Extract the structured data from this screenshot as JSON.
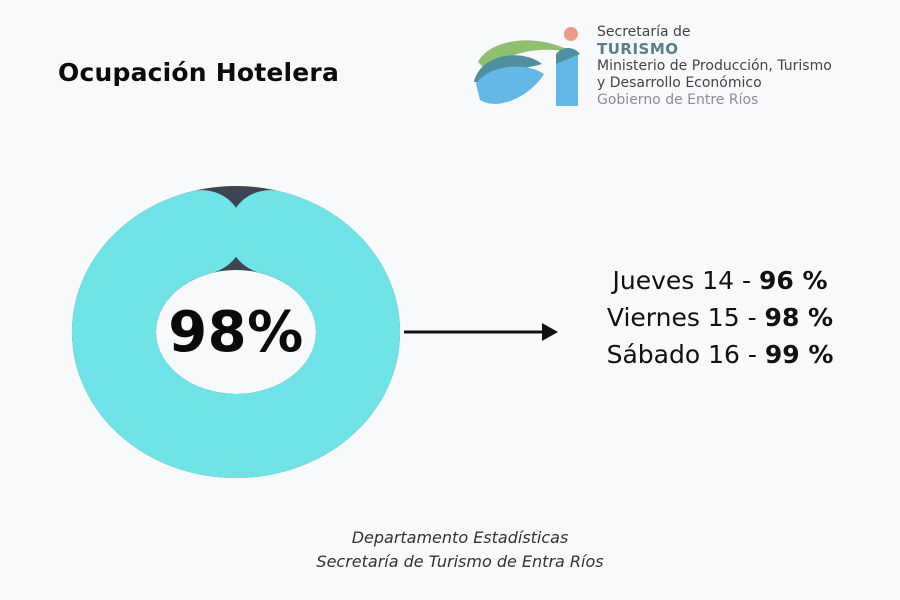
{
  "title": "Ocupación Hotelera",
  "logo": {
    "line1": "Secretaría de",
    "line2": "TURISMO",
    "line3": "Ministerio de Producción, Turismo",
    "line4": "y Desarrollo Económico",
    "line5": "Gobierno de Entre Ríos"
  },
  "chart_data": {
    "type": "pie",
    "center_label": "98%",
    "value": 98,
    "max": 100,
    "colors": {
      "filled": "#6ee3e8",
      "remainder": "#3e4550"
    },
    "days": [
      {
        "label": "Jueves 14 - ",
        "value": "96 %"
      },
      {
        "label": "Viernes 15 - ",
        "value": "98 %"
      },
      {
        "label": "Sábado 16 - ",
        "value": "99 %"
      }
    ]
  },
  "footer": {
    "line1": "Departamento Estadísticas",
    "line2": "Secretaría de Turismo de Entra Ríos"
  }
}
